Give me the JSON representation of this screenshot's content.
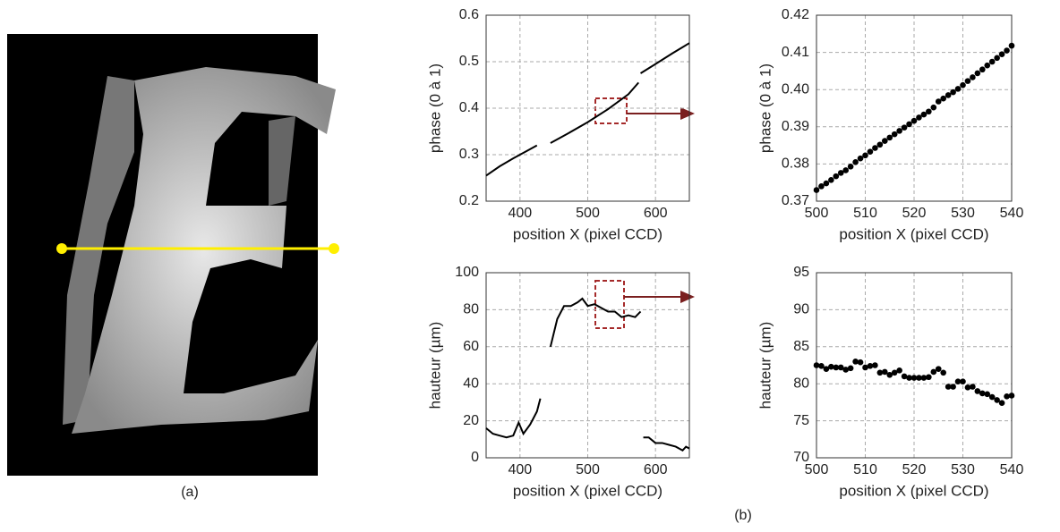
{
  "panel_labels": [
    "(a)",
    "(b)"
  ],
  "chart_data": [
    {
      "type": "line",
      "xlabel": "position X (pixel CCD)",
      "ylabel": "phase (0 à 1)",
      "color": "#000000",
      "x": [
        350,
        370,
        390,
        410,
        425,
        435,
        445,
        470,
        500,
        530,
        560,
        575,
        576,
        578,
        600,
        625,
        650
      ],
      "values": [
        0.255,
        0.275,
        0.292,
        0.308,
        0.32,
        null,
        0.325,
        0.345,
        0.37,
        0.398,
        0.43,
        0.455,
        null,
        0.475,
        0.495,
        0.518,
        0.54
      ],
      "xlim": [
        350,
        650
      ],
      "xticks": [
        400,
        500,
        600
      ],
      "ylim": [
        0.2,
        0.6
      ],
      "yticks": [
        0.2,
        0.3,
        0.4,
        0.5,
        0.6
      ],
      "grid": true
    },
    {
      "type": "scatter",
      "xlabel": "position X (pixel CCD)",
      "ylabel": "phase (0 à 1)",
      "color": "#000000",
      "x": [
        500,
        501,
        502,
        503,
        504,
        505,
        506,
        507,
        508,
        509,
        510,
        511,
        512,
        513,
        514,
        515,
        516,
        517,
        518,
        519,
        520,
        521,
        522,
        523,
        524,
        525,
        526,
        527,
        528,
        529,
        530,
        531,
        532,
        533,
        534,
        535,
        536,
        537,
        538,
        539,
        540
      ],
      "values": [
        0.373,
        0.374,
        0.3748,
        0.3757,
        0.3767,
        0.3776,
        0.3783,
        0.3793,
        0.3805,
        0.3815,
        0.3823,
        0.3833,
        0.3843,
        0.3852,
        0.3862,
        0.3871,
        0.388,
        0.3889,
        0.3898,
        0.3907,
        0.3916,
        0.3925,
        0.3933,
        0.3941,
        0.3952,
        0.3968,
        0.3976,
        0.3985,
        0.3993,
        0.4002,
        0.4012,
        0.4023,
        0.4033,
        0.4044,
        0.4054,
        0.4065,
        0.4075,
        0.4085,
        0.4095,
        0.4105,
        0.4118
      ],
      "xlim": [
        500,
        540
      ],
      "xticks": [
        500,
        510,
        520,
        530,
        540
      ],
      "ylim": [
        0.37,
        0.42
      ],
      "yticks": [
        0.37,
        0.38,
        0.39,
        {
          "value": 0.4,
          "label": "0.40"
        },
        0.41,
        0.42
      ],
      "grid": true
    },
    {
      "type": "line",
      "xlabel": "position X (pixel CCD)",
      "ylabel": "hauteur (µm)",
      "color": "#000000",
      "x": [
        350,
        360,
        370,
        380,
        390,
        398,
        405,
        415,
        425,
        430,
        437,
        445,
        455,
        465,
        475,
        485,
        492,
        500,
        510,
        520,
        530,
        540,
        550,
        560,
        570,
        578,
        579,
        582,
        590,
        600,
        610,
        620,
        630,
        640,
        645,
        650
      ],
      "values": [
        16,
        13,
        12,
        11,
        12,
        19,
        13,
        18,
        25,
        32,
        null,
        60,
        75,
        82,
        82,
        84,
        86,
        82,
        83,
        81,
        79,
        79,
        76,
        77,
        76,
        79,
        null,
        11,
        11,
        8,
        8,
        7,
        6,
        4,
        6,
        5
      ],
      "xlim": [
        350,
        650
      ],
      "xticks": [
        400,
        500,
        600
      ],
      "ylim": [
        0,
        100
      ],
      "yticks": [
        0,
        20,
        40,
        60,
        80,
        100
      ],
      "grid": true
    },
    {
      "type": "scatter",
      "xlabel": "position X (pixel CCD)",
      "ylabel": "hauteur (µm)",
      "color": "#000000",
      "x": [
        500,
        501,
        502,
        503,
        504,
        505,
        506,
        507,
        508,
        509,
        510,
        511,
        512,
        513,
        514,
        515,
        516,
        517,
        518,
        519,
        520,
        521,
        522,
        523,
        524,
        525,
        526,
        527,
        528,
        529,
        530,
        531,
        532,
        533,
        534,
        535,
        536,
        537,
        538,
        539,
        540
      ],
      "values": [
        82.5,
        82.4,
        82.0,
        82.3,
        82.2,
        82.2,
        81.9,
        82.1,
        83.0,
        82.9,
        82.2,
        82.4,
        82.5,
        81.5,
        81.6,
        81.2,
        81.5,
        81.8,
        81.0,
        80.8,
        80.8,
        80.8,
        80.8,
        80.9,
        81.6,
        82.0,
        81.5,
        79.6,
        79.6,
        80.3,
        80.3,
        79.5,
        79.6,
        79.0,
        78.7,
        78.6,
        78.2,
        77.8,
        77.4,
        78.3,
        78.4
      ],
      "xlim": [
        500,
        540
      ],
      "xticks": [
        500,
        510,
        520,
        530,
        540
      ],
      "ylim": [
        70,
        95
      ],
      "yticks": [
        70,
        75,
        80,
        85,
        90,
        95
      ],
      "grid": true
    }
  ]
}
